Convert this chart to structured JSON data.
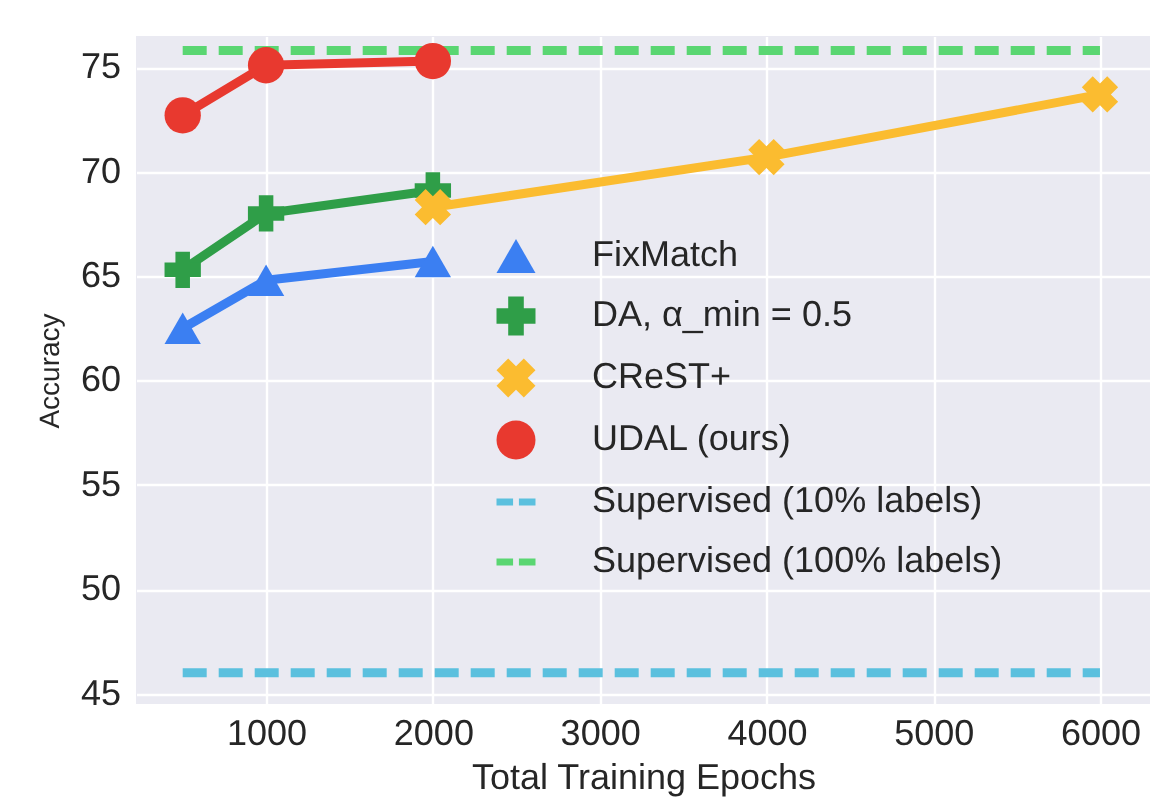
{
  "chart_data": {
    "type": "line",
    "xlabel": "Total Training Epochs",
    "ylabel": "Accuracy",
    "xlim": [
      220,
      6300
    ],
    "ylim": [
      44.5,
      76.5
    ],
    "xticks": [
      1000,
      2000,
      3000,
      4000,
      5000,
      6000
    ],
    "yticks": [
      45,
      50,
      55,
      60,
      65,
      70,
      75
    ],
    "grid": true,
    "legend": "right",
    "series": [
      {
        "name": "FixMatch",
        "color": "#3b7ff2",
        "marker": "triangle",
        "x": [
          500,
          1000,
          2000
        ],
        "values": [
          62.5,
          64.8,
          65.7
        ]
      },
      {
        "name": "DA, α_min = 0.5",
        "color": "#2f9e48",
        "marker": "plus",
        "x": [
          500,
          1000,
          2000
        ],
        "values": [
          65.3,
          68.0,
          69.1
        ]
      },
      {
        "name": "CReST+",
        "color": "#fbbc30",
        "marker": "cross",
        "x": [
          2000,
          4000,
          6000
        ],
        "values": [
          68.3,
          70.7,
          73.7
        ]
      },
      {
        "name": "UDAL (ours)",
        "color": "#e8392f",
        "marker": "circle",
        "x": [
          500,
          1000,
          2000
        ],
        "values": [
          72.7,
          75.1,
          75.3
        ]
      },
      {
        "name": "Supervised (10% labels)",
        "color": "#5bc0de",
        "marker": "none",
        "line_style": "dashed",
        "x": [
          500,
          6000
        ],
        "values": [
          46.0,
          46.0
        ]
      },
      {
        "name": "Supervised (100% labels)",
        "color": "#5ad672",
        "marker": "none",
        "line_style": "dashed",
        "x": [
          500,
          6000
        ],
        "values": [
          75.8,
          75.8
        ]
      }
    ]
  }
}
